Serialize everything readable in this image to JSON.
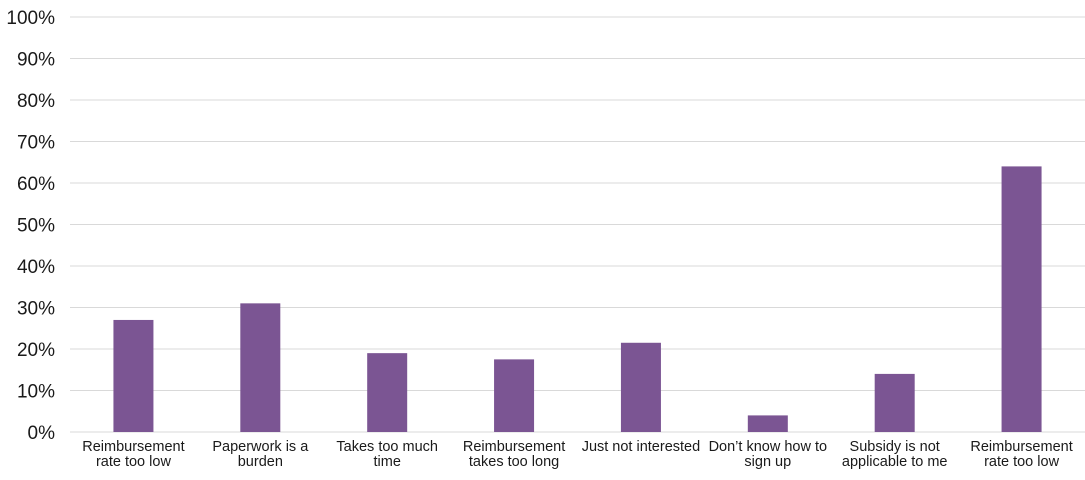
{
  "chart_data": {
    "type": "bar",
    "title": "",
    "xlabel": "",
    "ylabel": "",
    "ylim": [
      0,
      100
    ],
    "y_tick_values": [
      0,
      10,
      20,
      30,
      40,
      50,
      60,
      70,
      80,
      90,
      100
    ],
    "y_tick_labels": [
      "0%",
      "10%",
      "20%",
      "30%",
      "40%",
      "50%",
      "60%",
      "70%",
      "80%",
      "90%",
      "100%"
    ],
    "grid": true,
    "legend": "none",
    "bar_color": "#7b5593",
    "gridline_color": "#d9d9d9",
    "categories": [
      [
        "Reimbursement",
        "rate too low"
      ],
      [
        "Paperwork is a",
        "burden"
      ],
      [
        "Takes too much",
        "time"
      ],
      [
        "Reimbursement",
        "takes too long"
      ],
      [
        "Just not interested"
      ],
      [
        "Don’t know how to",
        "sign up"
      ],
      [
        "Subsidy is not",
        "applicable to me"
      ],
      [
        "Reimbursement",
        "rate too low"
      ]
    ],
    "values": [
      27,
      31,
      19,
      17.5,
      21.5,
      4,
      14,
      64
    ]
  }
}
